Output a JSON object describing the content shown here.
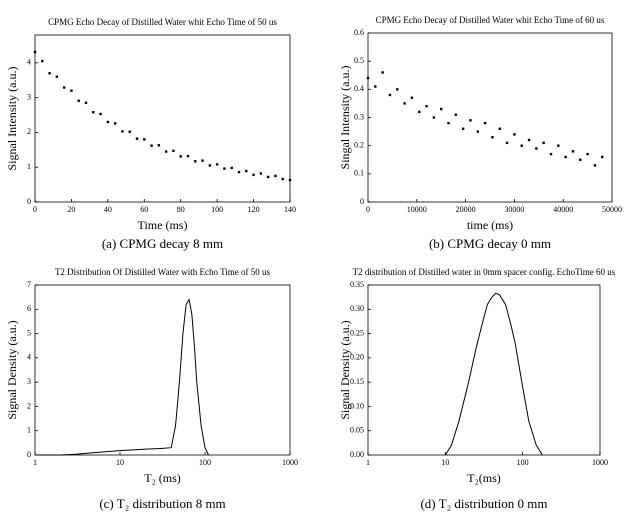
{
  "chart_data": [
    {
      "type": "scatter",
      "title": "CPMG Echo Decay of Distilled Water whit Echo Time of 50 us",
      "xlabel": "Time (ms)",
      "ylabel": "Signal Intensity (a.u.)",
      "caption": "(a) CPMG decay 8 mm",
      "color": "#000000",
      "x": [
        0,
        4,
        8,
        12,
        16,
        20,
        24,
        28,
        32,
        36,
        40,
        44,
        48,
        52,
        56,
        60,
        64,
        68,
        72,
        76,
        80,
        84,
        88,
        92,
        96,
        100,
        104,
        108,
        112,
        116,
        120,
        124,
        128,
        132,
        136,
        140
      ],
      "values": [
        4.31,
        4.05,
        3.7,
        3.6,
        3.29,
        3.2,
        2.91,
        2.85,
        2.58,
        2.53,
        2.3,
        2.26,
        2.03,
        2.02,
        1.82,
        1.8,
        1.62,
        1.63,
        1.45,
        1.47,
        1.31,
        1.32,
        1.17,
        1.19,
        1.05,
        1.08,
        0.96,
        0.98,
        0.86,
        0.89,
        0.78,
        0.82,
        0.72,
        0.75,
        0.66,
        0.63
      ],
      "xlim": [
        0,
        140
      ],
      "xticks": [
        0,
        20,
        40,
        60,
        80,
        100,
        120,
        140
      ],
      "ylim": [
        0,
        4.8
      ],
      "yticks": [
        0,
        1,
        2,
        3,
        4
      ]
    },
    {
      "type": "scatter",
      "title": "CPMG Echo Decay of Distilled Water whit Echo Time of 60 us",
      "xlabel": "time (ms)",
      "ylabel": "Singal Intensity (a.u.)",
      "caption": "(b) CPMG decay 0 mm",
      "color": "#000000",
      "x": [
        0,
        1500,
        3000,
        4500,
        6000,
        7500,
        9000,
        10500,
        12000,
        13500,
        15000,
        16500,
        18000,
        19500,
        21000,
        22500,
        24000,
        25500,
        27000,
        28500,
        30000,
        31500,
        33000,
        34500,
        36000,
        37500,
        39000,
        40500,
        42000,
        43500,
        45000,
        46500,
        48000
      ],
      "values": [
        0.44,
        0.41,
        0.46,
        0.38,
        0.4,
        0.35,
        0.37,
        0.32,
        0.34,
        0.3,
        0.33,
        0.28,
        0.31,
        0.26,
        0.29,
        0.25,
        0.28,
        0.23,
        0.26,
        0.21,
        0.24,
        0.2,
        0.22,
        0.19,
        0.21,
        0.17,
        0.2,
        0.16,
        0.18,
        0.15,
        0.17,
        0.13,
        0.16
      ],
      "xlim": [
        0,
        50000
      ],
      "xticks": [
        0,
        10000,
        20000,
        30000,
        40000,
        50000
      ],
      "ylim": [
        0,
        0.6
      ],
      "yticks": [
        0,
        0.1,
        0.2,
        0.3,
        0.4,
        0.5,
        0.6
      ]
    },
    {
      "type": "line",
      "title": "T2 Distribution Of Distilled Water with Echo Time of 50 us",
      "xlabel": "T₂ (ms)",
      "ylabel": "Signal Density (a.u.)",
      "caption": "(c) T₂ distribution 8 mm",
      "color": "#000000",
      "xscale": "log",
      "x": [
        1,
        2,
        3,
        5,
        10,
        20,
        30,
        40,
        45,
        50,
        55,
        60,
        65,
        70,
        75,
        80,
        90,
        100,
        110
      ],
      "values": [
        0,
        0,
        0.03,
        0.1,
        0.18,
        0.24,
        0.27,
        0.3,
        1.2,
        3.0,
        5.0,
        6.2,
        6.4,
        5.8,
        4.5,
        3.0,
        1.2,
        0.3,
        0
      ],
      "xlim": [
        1,
        1000
      ],
      "xticks": [
        1,
        10,
        100,
        1000
      ],
      "ylim": [
        0,
        7
      ],
      "yticks": [
        0,
        1,
        2,
        3,
        4,
        5,
        6,
        7
      ]
    },
    {
      "type": "line",
      "title": "T2 distribution of Distilled water in 0mm spacer config. EchoTime 60 us",
      "xlabel": "T₂(ms)",
      "ylabel": "Signal Density (a.u.)",
      "caption": "(d) T₂ distribution 0 mm",
      "color": "#000000",
      "xscale": "log",
      "x": [
        10,
        12,
        15,
        20,
        25,
        30,
        35,
        40,
        45,
        50,
        60,
        70,
        80,
        100,
        120,
        150,
        180
      ],
      "values": [
        0,
        0.02,
        0.07,
        0.15,
        0.22,
        0.27,
        0.31,
        0.325,
        0.333,
        0.33,
        0.31,
        0.27,
        0.23,
        0.14,
        0.07,
        0.02,
        0
      ],
      "xlim": [
        1,
        1000
      ],
      "xticks": [
        1,
        10,
        100,
        1000
      ],
      "ylim": [
        0,
        0.35
      ],
      "yticks": [
        {
          "value": 0,
          "label": "0.00"
        },
        {
          "value": 0.05,
          "label": "0.05"
        },
        {
          "value": 0.1,
          "label": "0.10"
        },
        {
          "value": 0.15,
          "label": "0.15"
        },
        {
          "value": 0.2,
          "label": "0.20"
        },
        {
          "value": 0.25,
          "label": "0.25"
        },
        {
          "value": 0.3,
          "label": "0.30"
        },
        {
          "value": 0.35,
          "label": "0.35"
        }
      ]
    }
  ]
}
